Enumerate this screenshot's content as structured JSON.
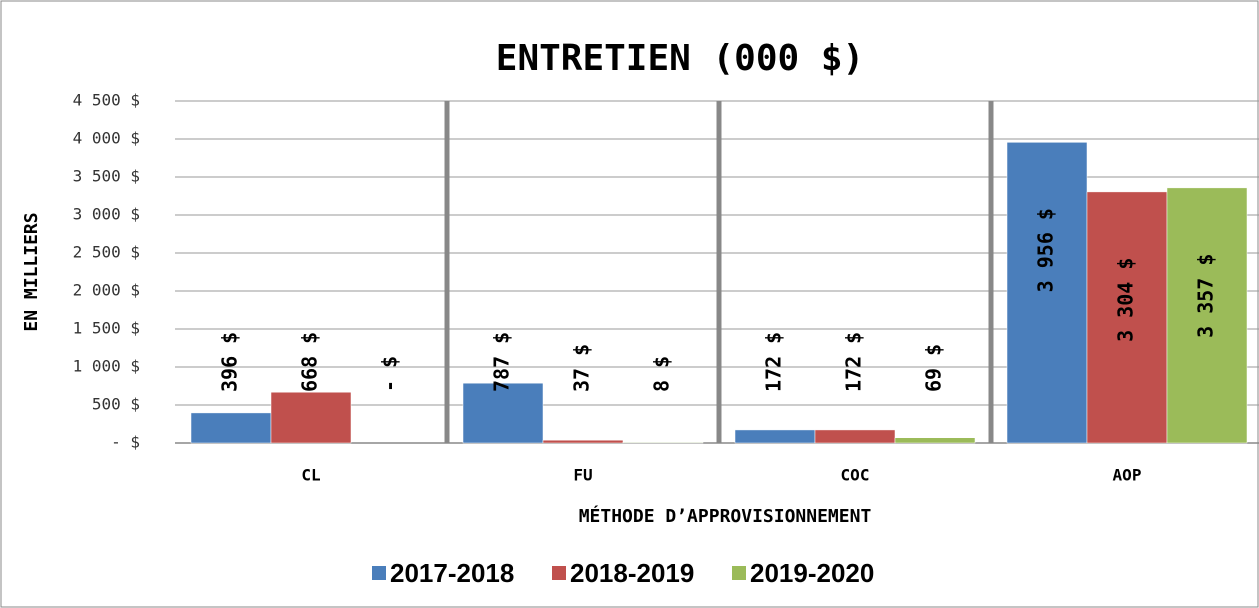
{
  "chart_data": {
    "type": "bar",
    "title": "ENTRETIEN (000 $)",
    "y_label": "EN MILLIERS",
    "x_label": "MÉTHODE D’APPROVISIONNEMENT",
    "categories": [
      "CL",
      "FU",
      "COC",
      "AOP"
    ],
    "series": [
      {
        "name": "2017-2018",
        "color": "#4a7ebb",
        "values": [
          396,
          787,
          172,
          3956
        ],
        "value_labels": [
          "396 $",
          "787 $",
          "172 $",
          "3 956 $"
        ]
      },
      {
        "name": "2018-2019",
        "color": "#c0504d",
        "values": [
          668,
          37,
          172,
          3304
        ],
        "value_labels": [
          "668 $",
          "37 $",
          "172 $",
          "3 304 $"
        ]
      },
      {
        "name": "2019-2020",
        "color": "#9bbb59",
        "values": [
          0,
          8,
          69,
          3357
        ],
        "value_labels": [
          "- $",
          "8 $",
          "69 $",
          "3 357 $"
        ]
      }
    ],
    "ylim": [
      0,
      4500
    ],
    "yticks": [
      {
        "value": 0,
        "label": "- $"
      },
      {
        "value": 500,
        "label": "500 $"
      },
      {
        "value": 1000,
        "label": "1 000 $"
      },
      {
        "value": 1500,
        "label": "1 500 $"
      },
      {
        "value": 2000,
        "label": "2 000 $"
      },
      {
        "value": 2500,
        "label": "2 500 $"
      },
      {
        "value": 3000,
        "label": "3 000 $"
      },
      {
        "value": 3500,
        "label": "3 500 $"
      },
      {
        "value": 4000,
        "label": "4 000 $"
      },
      {
        "value": 4500,
        "label": "4 500 $"
      }
    ],
    "grid": true,
    "legend": "bottom"
  }
}
